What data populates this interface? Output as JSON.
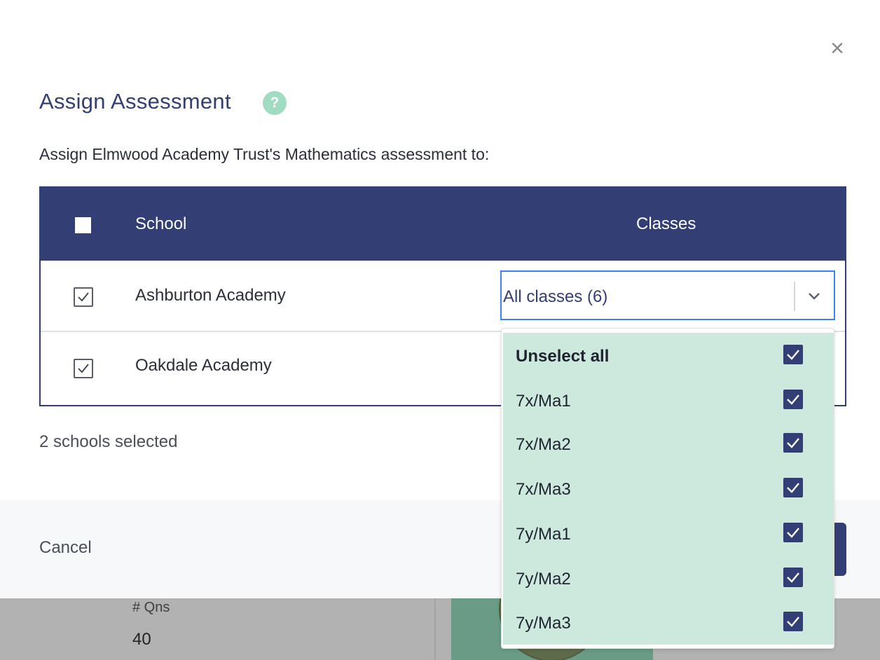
{
  "background": {
    "qns_label": "# Qns",
    "qns_value": "40"
  },
  "modal": {
    "title": "Assign Assessment",
    "help_icon": "?",
    "close_icon": "×",
    "subtitle": "Assign Elmwood Academy Trust's Mathematics assessment to:",
    "table": {
      "header_school": "School",
      "header_classes": "Classes",
      "header_checked": false,
      "rows": [
        {
          "school": "Ashburton Academy",
          "checked": true
        },
        {
          "school": "Oakdale Academy",
          "checked": true
        }
      ]
    },
    "classes_select": {
      "value": "All classes (6)",
      "options": [
        {
          "label": "Unselect all",
          "checked": true
        },
        {
          "label": "7x/Ma1",
          "checked": true
        },
        {
          "label": "7x/Ma2",
          "checked": true
        },
        {
          "label": "7x/Ma3",
          "checked": true
        },
        {
          "label": "7y/Ma1",
          "checked": true
        },
        {
          "label": "7y/Ma2",
          "checked": true
        },
        {
          "label": "7y/Ma3",
          "checked": true
        }
      ]
    },
    "selected_count": "2 schools selected",
    "footer": {
      "cancel_label": "Cancel"
    }
  },
  "colors": {
    "primary": "#333e75",
    "menu_bg": "#cde8dd",
    "help_bg": "#9fdcc2",
    "focus_border": "#3b82f6"
  }
}
